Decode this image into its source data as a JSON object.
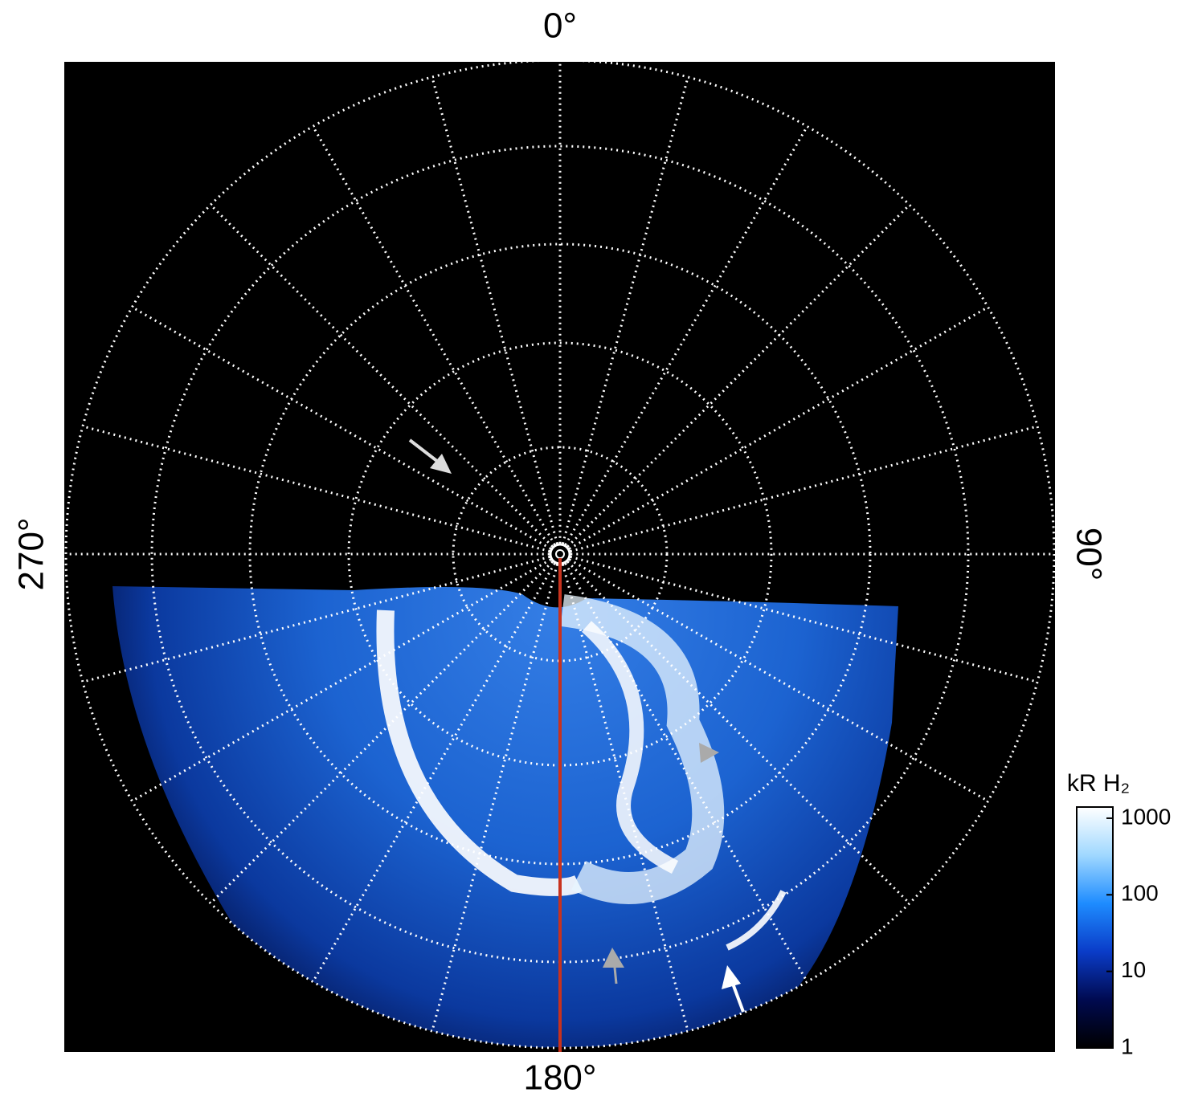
{
  "chart_data": {
    "type": "polar-image",
    "angle_ticks": [
      {
        "value": 0,
        "label": "0°"
      },
      {
        "value": 90,
        "label": "90°"
      },
      {
        "value": 180,
        "label": "180°"
      },
      {
        "value": 270,
        "label": "270°"
      }
    ],
    "colorbar": {
      "label": "kR H₂",
      "log": true,
      "lim": [
        1,
        1400
      ],
      "ticks": [
        1,
        10,
        100,
        1000
      ],
      "colors": [
        "#000000",
        "#000a50",
        "#0a3cc8",
        "#1e8cff",
        "#a0d8ff",
        "#ffffff"
      ]
    }
  }
}
